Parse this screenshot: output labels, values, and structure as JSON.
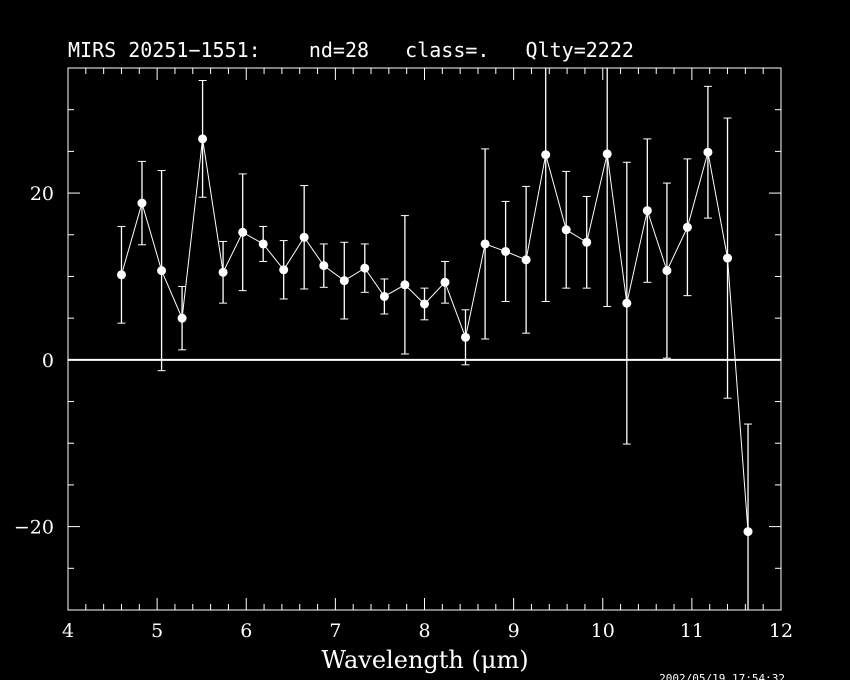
{
  "chart_data": {
    "type": "scatter",
    "title": "MIRS 20251−1551:    nd=28   class=.   Qlty=2222",
    "xlabel": "Wavelength (μm)",
    "ylabel": "",
    "xlim": [
      4,
      12
    ],
    "ylim": [
      -30,
      35
    ],
    "xticks": [
      "4",
      "5",
      "6",
      "7",
      "8",
      "9",
      "10",
      "11",
      "12"
    ],
    "yticks": [
      "−20",
      "0",
      "20"
    ],
    "timestamp": "2002/05/19 17:54:32",
    "zero_line": true,
    "points": [
      {
        "x": 4.6,
        "y": 10.2,
        "err": 5.8
      },
      {
        "x": 4.83,
        "y": 18.8,
        "err": 5.0
      },
      {
        "x": 5.05,
        "y": 10.7,
        "err": 12.0
      },
      {
        "x": 5.28,
        "y": 5.0,
        "err": 3.8
      },
      {
        "x": 5.51,
        "y": 26.5,
        "err": 7.0
      },
      {
        "x": 5.74,
        "y": 10.5,
        "err": 3.7
      },
      {
        "x": 5.96,
        "y": 15.3,
        "err": 7.0
      },
      {
        "x": 6.19,
        "y": 13.9,
        "err": 2.1
      },
      {
        "x": 6.42,
        "y": 10.8,
        "err": 3.5
      },
      {
        "x": 6.65,
        "y": 14.7,
        "err": 6.2
      },
      {
        "x": 6.87,
        "y": 11.3,
        "err": 2.6
      },
      {
        "x": 7.1,
        "y": 9.5,
        "err": 4.6
      },
      {
        "x": 7.33,
        "y": 11.0,
        "err": 2.9
      },
      {
        "x": 7.55,
        "y": 7.6,
        "err": 2.1
      },
      {
        "x": 7.78,
        "y": 9.0,
        "err": 8.3
      },
      {
        "x": 8.0,
        "y": 6.7,
        "err": 1.9
      },
      {
        "x": 8.23,
        "y": 9.3,
        "err": 2.5
      },
      {
        "x": 8.46,
        "y": 2.7,
        "err": 3.3
      },
      {
        "x": 8.68,
        "y": 13.9,
        "err": 11.4
      },
      {
        "x": 8.91,
        "y": 13.0,
        "err": 6.0
      },
      {
        "x": 9.14,
        "y": 12.0,
        "err": 8.8
      },
      {
        "x": 9.36,
        "y": 24.6,
        "err": 17.6
      },
      {
        "x": 9.59,
        "y": 15.6,
        "err": 7.0
      },
      {
        "x": 9.82,
        "y": 14.1,
        "err": 5.5
      },
      {
        "x": 10.05,
        "y": 24.7,
        "err": 18.3
      },
      {
        "x": 10.27,
        "y": 6.8,
        "err": 16.9
      },
      {
        "x": 10.5,
        "y": 17.9,
        "err": 8.6
      },
      {
        "x": 10.72,
        "y": 10.7,
        "err": 10.5
      },
      {
        "x": 10.95,
        "y": 15.9,
        "err": 8.2
      },
      {
        "x": 11.18,
        "y": 24.9,
        "err": 7.9
      },
      {
        "x": 11.4,
        "y": 12.2,
        "err": 16.8
      },
      {
        "x": 11.63,
        "y": -20.6,
        "err": 12.9
      }
    ]
  }
}
